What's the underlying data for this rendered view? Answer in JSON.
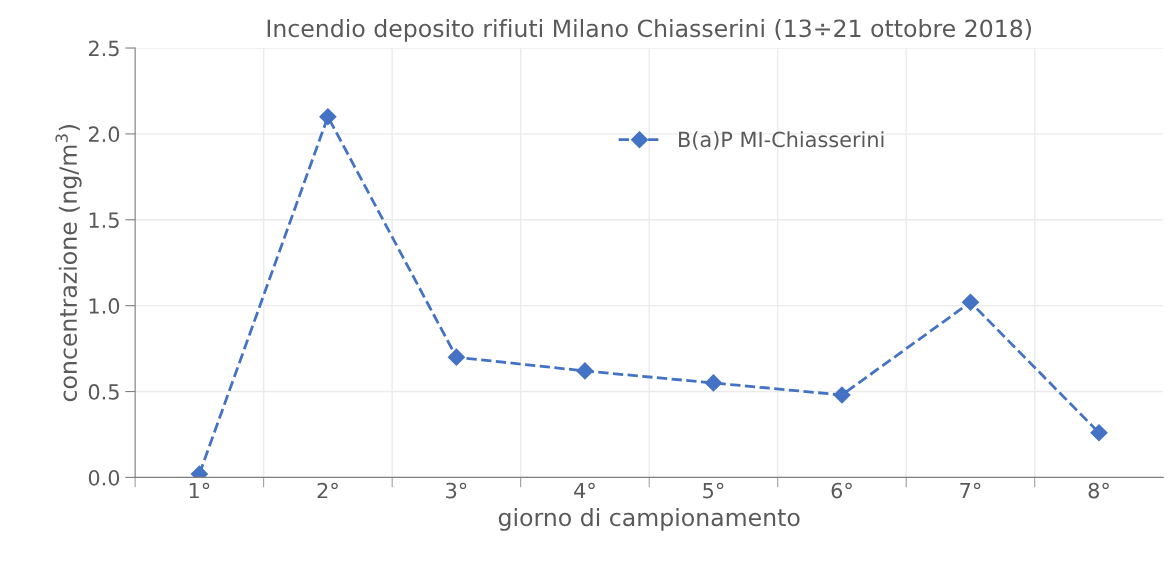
{
  "chart_data": {
    "type": "line",
    "title": "Incendio deposito rifiuti Milano Chiasserini (13÷21 ottobre 2018)",
    "xlabel": "giorno di campionamento",
    "ylabel": "concentrazione (ng/m$^{3}$)",
    "categories": [
      "1°",
      "2°",
      "3°",
      "4°",
      "5°",
      "6°",
      "7°",
      "8°"
    ],
    "series": [
      {
        "name": "B(a)P MI-Chiasserini",
        "color": "#4472c4",
        "values": [
          0.02,
          2.1,
          0.7,
          0.62,
          0.55,
          0.48,
          1.02,
          0.26
        ]
      }
    ],
    "ylim": [
      0,
      2.5
    ],
    "yticks": [
      {
        "value": 0,
        "label": "0.0"
      },
      {
        "value": 0.5,
        "label": "0.5"
      },
      {
        "value": 1,
        "label": "1.0"
      },
      {
        "value": 1.5,
        "label": "1.5"
      },
      {
        "value": 2,
        "label": "2.0"
      },
      {
        "value": 2.5,
        "label": "2.5"
      }
    ],
    "grid": true,
    "legend": "top",
    "marker": "diamond",
    "line_style": "dashed"
  }
}
